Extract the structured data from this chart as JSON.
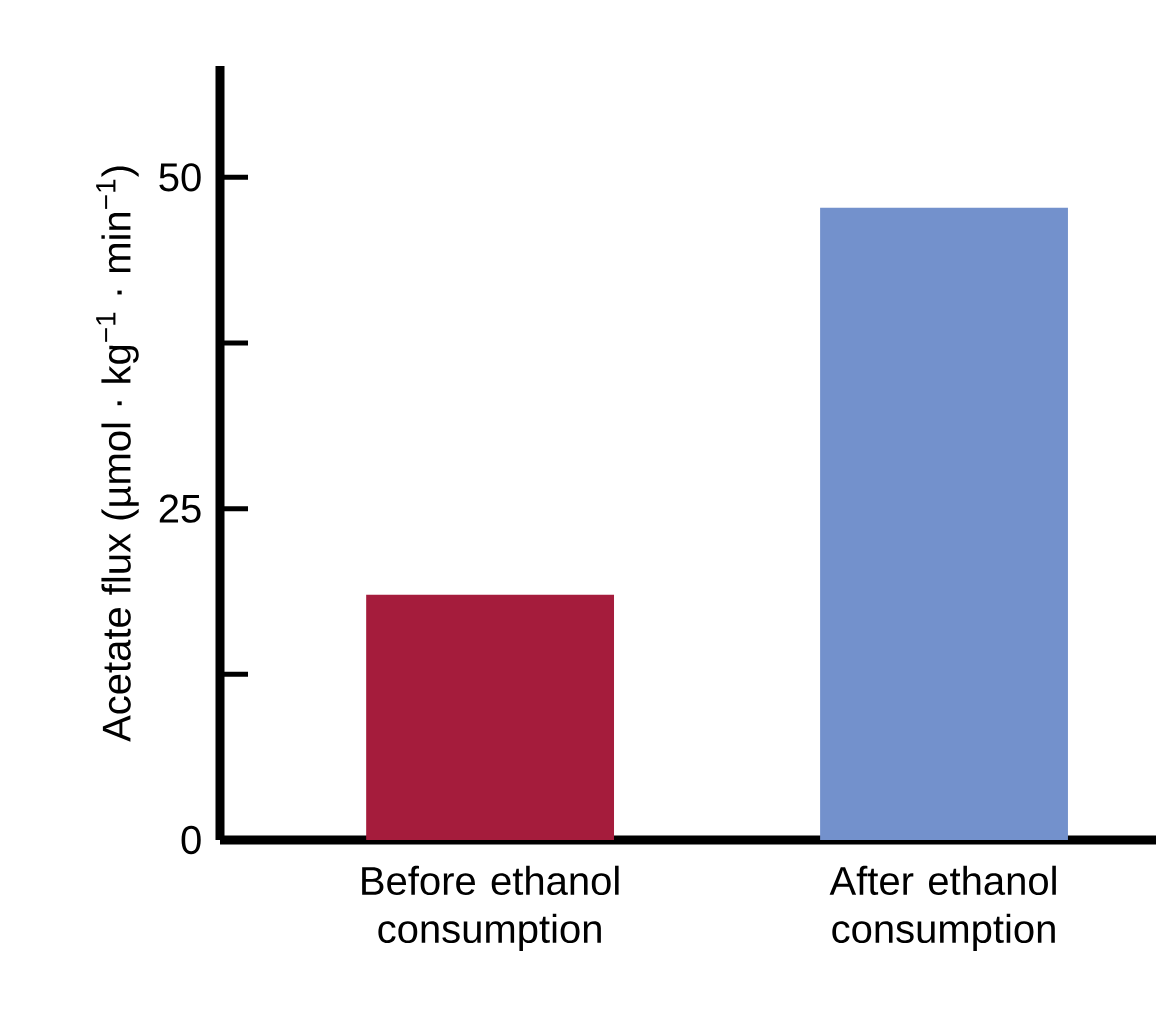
{
  "chart_data": {
    "type": "bar",
    "ylabel": "Acetate flux (µmol · kg$^{−1}$ · min$^{−1}$)",
    "categories": [
      "Before ethanol consumption",
      "After ethanol consumption"
    ],
    "values": [
      18.5,
      47.7
    ],
    "colors": [
      "#a51c3c",
      "#7391cc"
    ],
    "ylim": [
      0,
      58.4
    ],
    "yticks": [
      0,
      {
        "value": 12.5,
        "label": null
      },
      25,
      {
        "value": 37.5,
        "label": null
      },
      50
    ],
    "grid": false
  }
}
